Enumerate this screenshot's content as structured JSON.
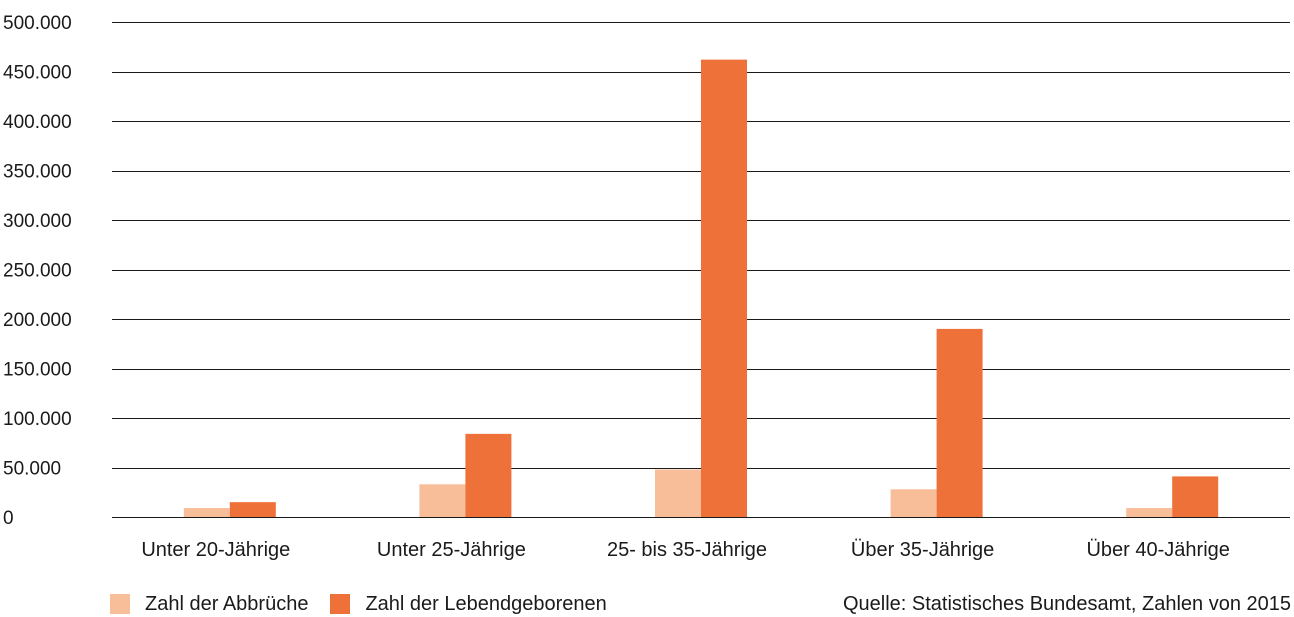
{
  "colors": {
    "abbrueche": "#f8bd99",
    "lebendgeborene": "#ef713a",
    "grid": "#1a1a1a"
  },
  "source": "Quelle: Statistisches Bundesamt, Zahlen von 2015",
  "chart_data": {
    "type": "bar",
    "title": "",
    "xlabel": "",
    "ylabel": "",
    "ylim": [
      0,
      500000
    ],
    "y_ticks": [
      0,
      50000,
      100000,
      150000,
      200000,
      250000,
      300000,
      350000,
      400000,
      450000,
      500000
    ],
    "y_tick_labels": [
      "0",
      "50.000",
      "100.000",
      "150.000",
      "200.000",
      "250.000",
      "300.000",
      "350.000",
      "400.000",
      "450.000",
      "500.000"
    ],
    "grid": true,
    "legend_position": "bottom-left",
    "categories": [
      "Unter 20-Jährige",
      "Unter 25-Jährige",
      "25- bis 35-Jährige",
      "Über 35-Jährige",
      "Über 40-Jährige"
    ],
    "series": [
      {
        "name": "Zahl der Abbrüche",
        "color": "#f8bd99",
        "values": [
          9000,
          33000,
          48000,
          28000,
          9000
        ]
      },
      {
        "name": "Zahl der Lebendgeborenen",
        "color": "#ef713a",
        "values": [
          15000,
          84000,
          462000,
          190000,
          41000
        ]
      }
    ]
  }
}
